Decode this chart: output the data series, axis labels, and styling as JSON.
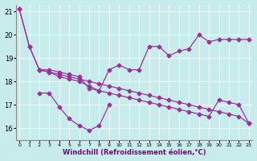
{
  "xlabel": "Windchill (Refroidissement éolien,°C)",
  "background_color": "#c8ecec",
  "line_color": "#993399",
  "ylim": [
    15.5,
    21.3
  ],
  "xlim": [
    -0.3,
    23.3
  ],
  "line_rising": {
    "x": [
      0,
      1,
      2,
      3,
      4,
      5,
      6,
      7,
      8,
      9,
      10,
      11,
      12,
      13,
      14,
      15,
      16,
      17,
      18,
      19,
      20,
      21,
      22,
      23
    ],
    "y": [
      21.1,
      19.5,
      18.5,
      18.5,
      18.4,
      18.3,
      18.2,
      17.7,
      17.6,
      18.5,
      18.7,
      18.5,
      18.5,
      19.5,
      19.5,
      19.1,
      19.3,
      19.4,
      20.0,
      19.7,
      19.8,
      19.8,
      19.8,
      19.8
    ]
  },
  "line_declining": {
    "x": [
      0,
      1,
      2,
      3,
      4,
      5,
      6,
      7,
      8,
      9,
      10,
      11,
      12,
      13,
      14,
      15,
      16,
      17,
      18,
      19,
      20,
      21,
      22,
      23
    ],
    "y": [
      21.1,
      19.5,
      18.5,
      18.4,
      18.2,
      18.1,
      18.0,
      17.8,
      17.6,
      17.5,
      17.4,
      17.3,
      17.2,
      17.1,
      17.0,
      16.9,
      16.8,
      16.7,
      16.6,
      16.5,
      17.2,
      17.1,
      17.0,
      16.2
    ]
  },
  "line_dip": {
    "x": [
      2,
      3,
      4,
      5,
      6,
      7,
      8,
      9
    ],
    "y": [
      17.5,
      17.5,
      16.9,
      16.4,
      16.1,
      15.9,
      16.1,
      17.0
    ]
  },
  "line_upper_decline": {
    "x": [
      2,
      3,
      4,
      5,
      6,
      7,
      8,
      9,
      10,
      11,
      12,
      13,
      14,
      15,
      16,
      17,
      18,
      19,
      20,
      21,
      22,
      23
    ],
    "y": [
      18.5,
      18.4,
      18.3,
      18.2,
      18.1,
      18.0,
      17.9,
      17.8,
      17.7,
      17.6,
      17.5,
      17.4,
      17.3,
      17.2,
      17.1,
      17.0,
      16.9,
      16.8,
      16.7,
      16.6,
      16.5,
      16.2
    ]
  }
}
